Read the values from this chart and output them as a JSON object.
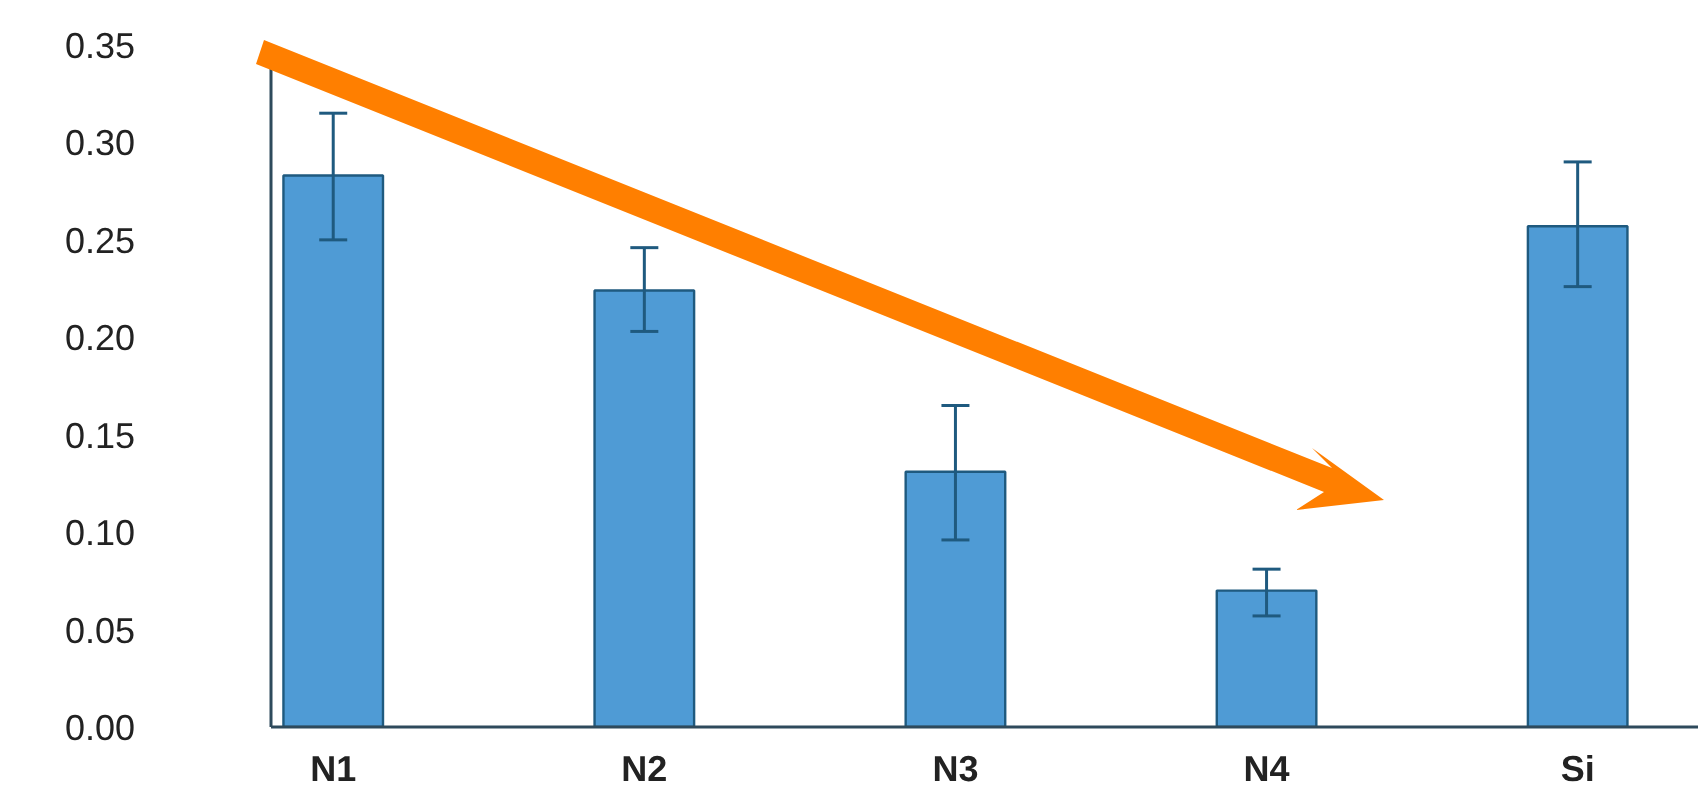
{
  "chart_data": {
    "type": "bar",
    "categories": [
      "N1",
      "N2",
      "N3",
      "N4",
      "Si"
    ],
    "values": [
      0.283,
      0.224,
      0.131,
      0.07,
      0.257
    ],
    "errors": [
      [
        0.25,
        0.315
      ],
      [
        0.203,
        0.246
      ],
      [
        0.096,
        0.165
      ],
      [
        0.057,
        0.081
      ],
      [
        0.226,
        0.29
      ]
    ],
    "color": "#4f9bd5",
    "ylim": [
      0,
      0.35
    ],
    "yticks": [
      {
        "value": 0,
        "label": "0.00"
      },
      {
        "value": 0.05,
        "label": "0.05"
      },
      {
        "value": 0.1,
        "label": "0.10"
      },
      {
        "value": 0.15,
        "label": "0.15"
      },
      {
        "value": 0.2,
        "label": "0.20"
      },
      {
        "value": 0.25,
        "label": "0.25"
      },
      {
        "value": 0.3,
        "label": "0.30"
      },
      {
        "value": 0.35,
        "label": "0.35"
      }
    ],
    "grid": false
  }
}
